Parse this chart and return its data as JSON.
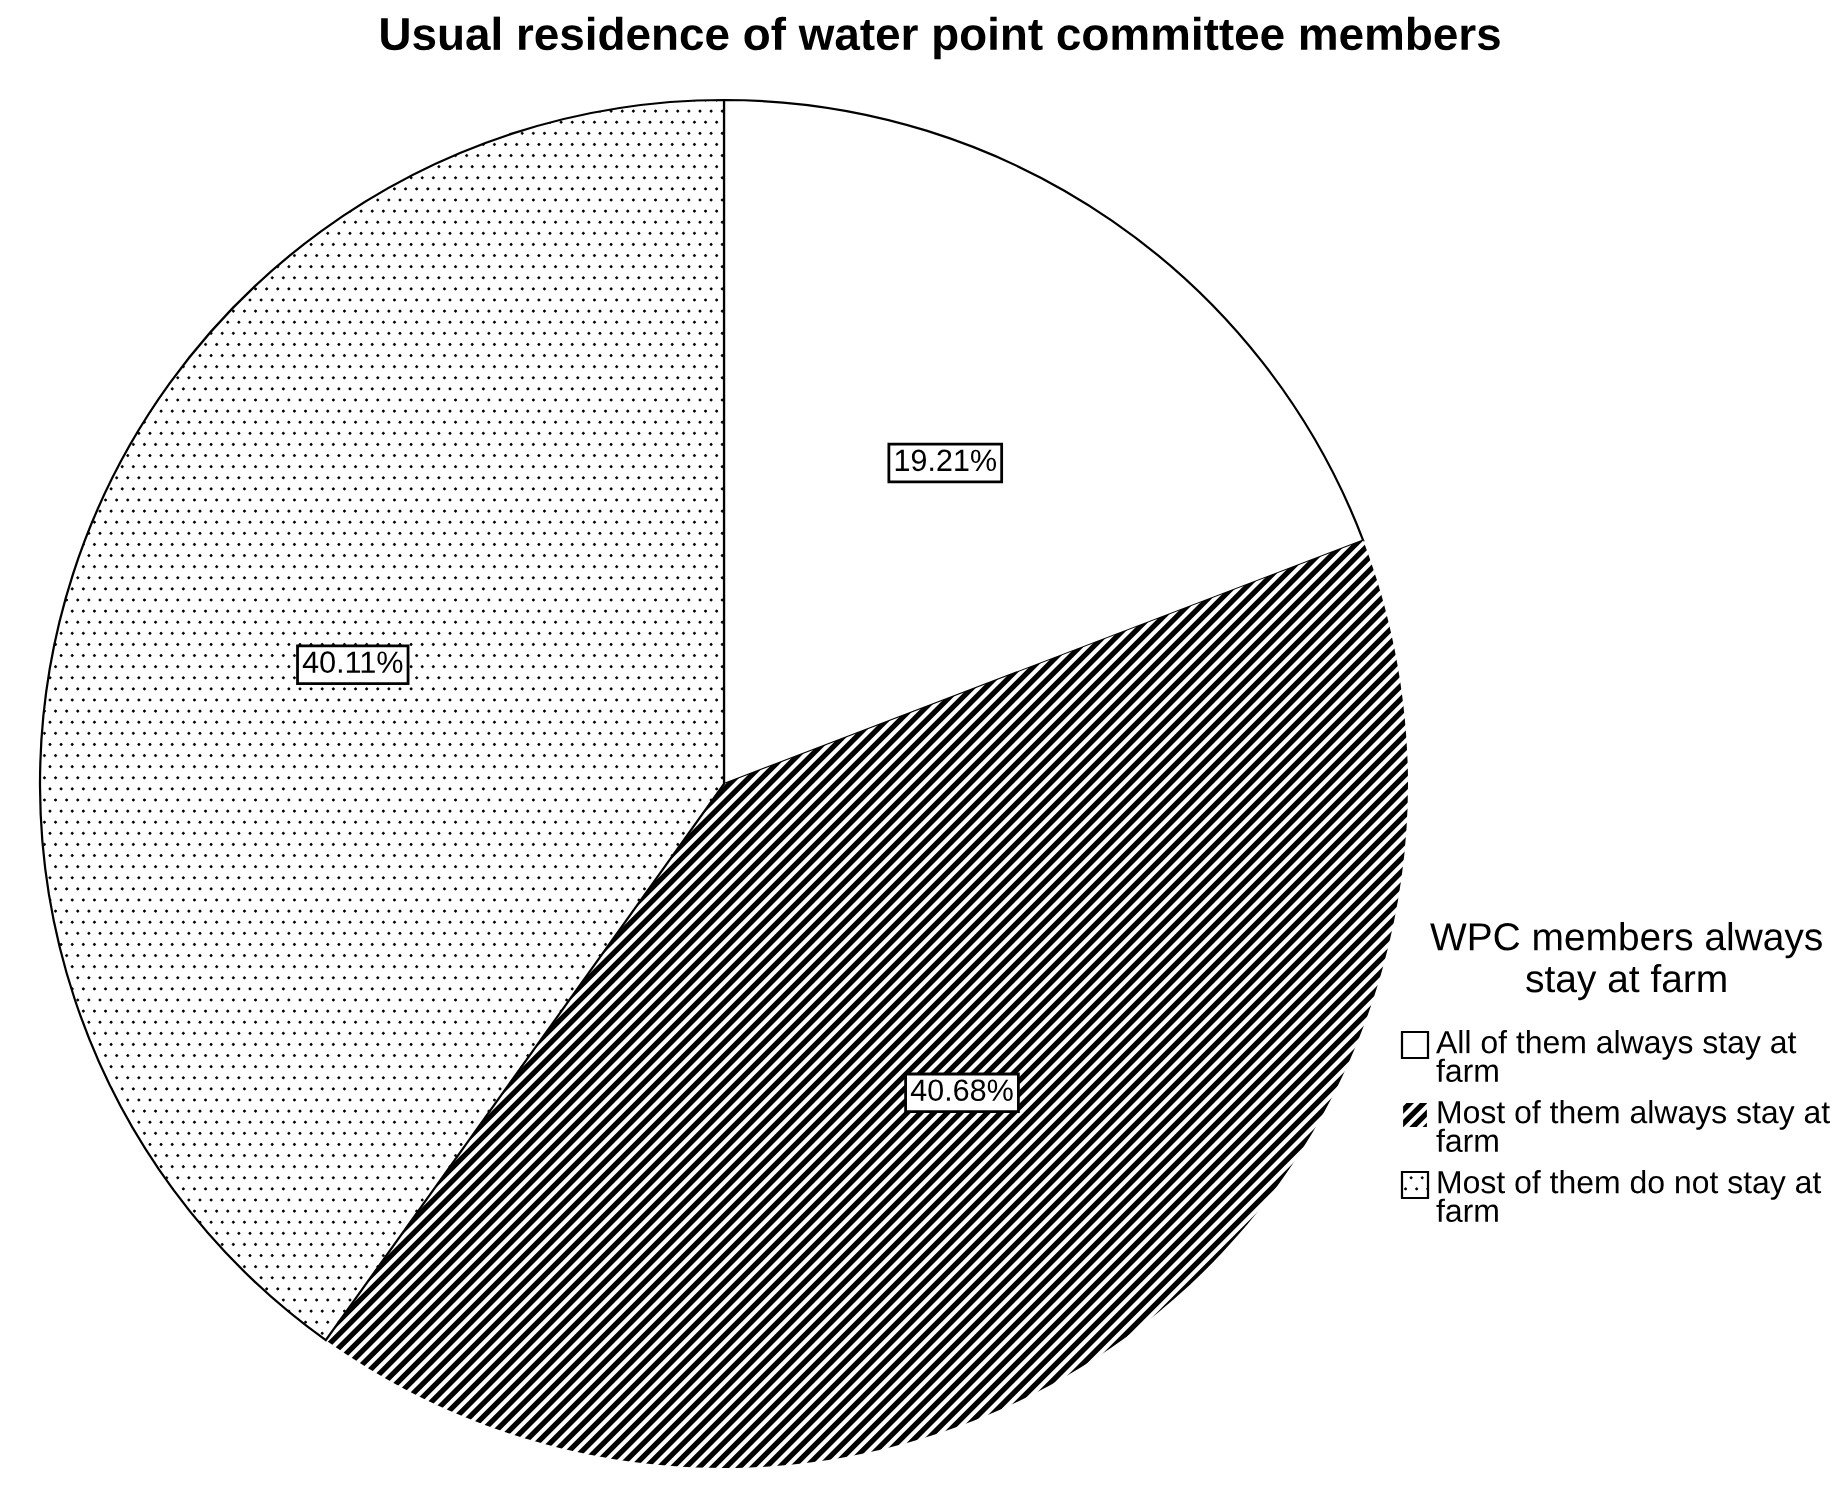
{
  "chart_data": {
    "type": "pie",
    "title": "Usual residence of water point committee members",
    "legend_title": "WPC members always stay at farm",
    "categories": [
      "All of them always stay at farm",
      "Most of them always stay at farm",
      "Most of them do not stay at farm"
    ],
    "values": [
      19.21,
      40.68,
      40.11
    ],
    "colors": [
      "#ffffff",
      "#000000",
      "#ffffff"
    ],
    "value_labels": [
      "19.21%",
      "40.68%",
      "40.11%"
    ],
    "legend": "right"
  }
}
